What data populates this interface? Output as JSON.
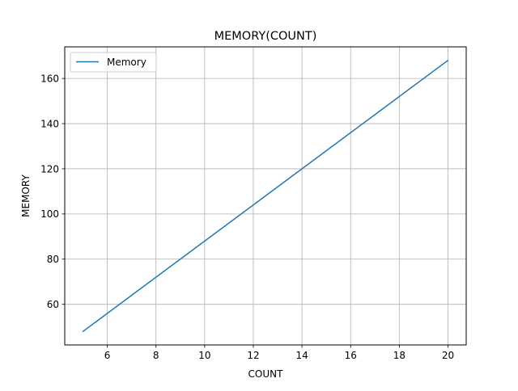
{
  "chart_data": {
    "type": "line",
    "title": "MEMORY(COUNT)",
    "xlabel": "COUNT",
    "ylabel": "MEMORY",
    "xlim": [
      4.25,
      20.75
    ],
    "ylim": [
      42.0,
      174.0
    ],
    "xticks": [
      6,
      8,
      10,
      12,
      14,
      16,
      18,
      20
    ],
    "yticks": [
      60,
      80,
      100,
      120,
      140,
      160
    ],
    "grid": true,
    "legend_position": "upper-left",
    "series": [
      {
        "name": "Memory",
        "color": "#1f77b4",
        "x": [
          5,
          20
        ],
        "y": [
          48,
          168
        ]
      }
    ]
  }
}
